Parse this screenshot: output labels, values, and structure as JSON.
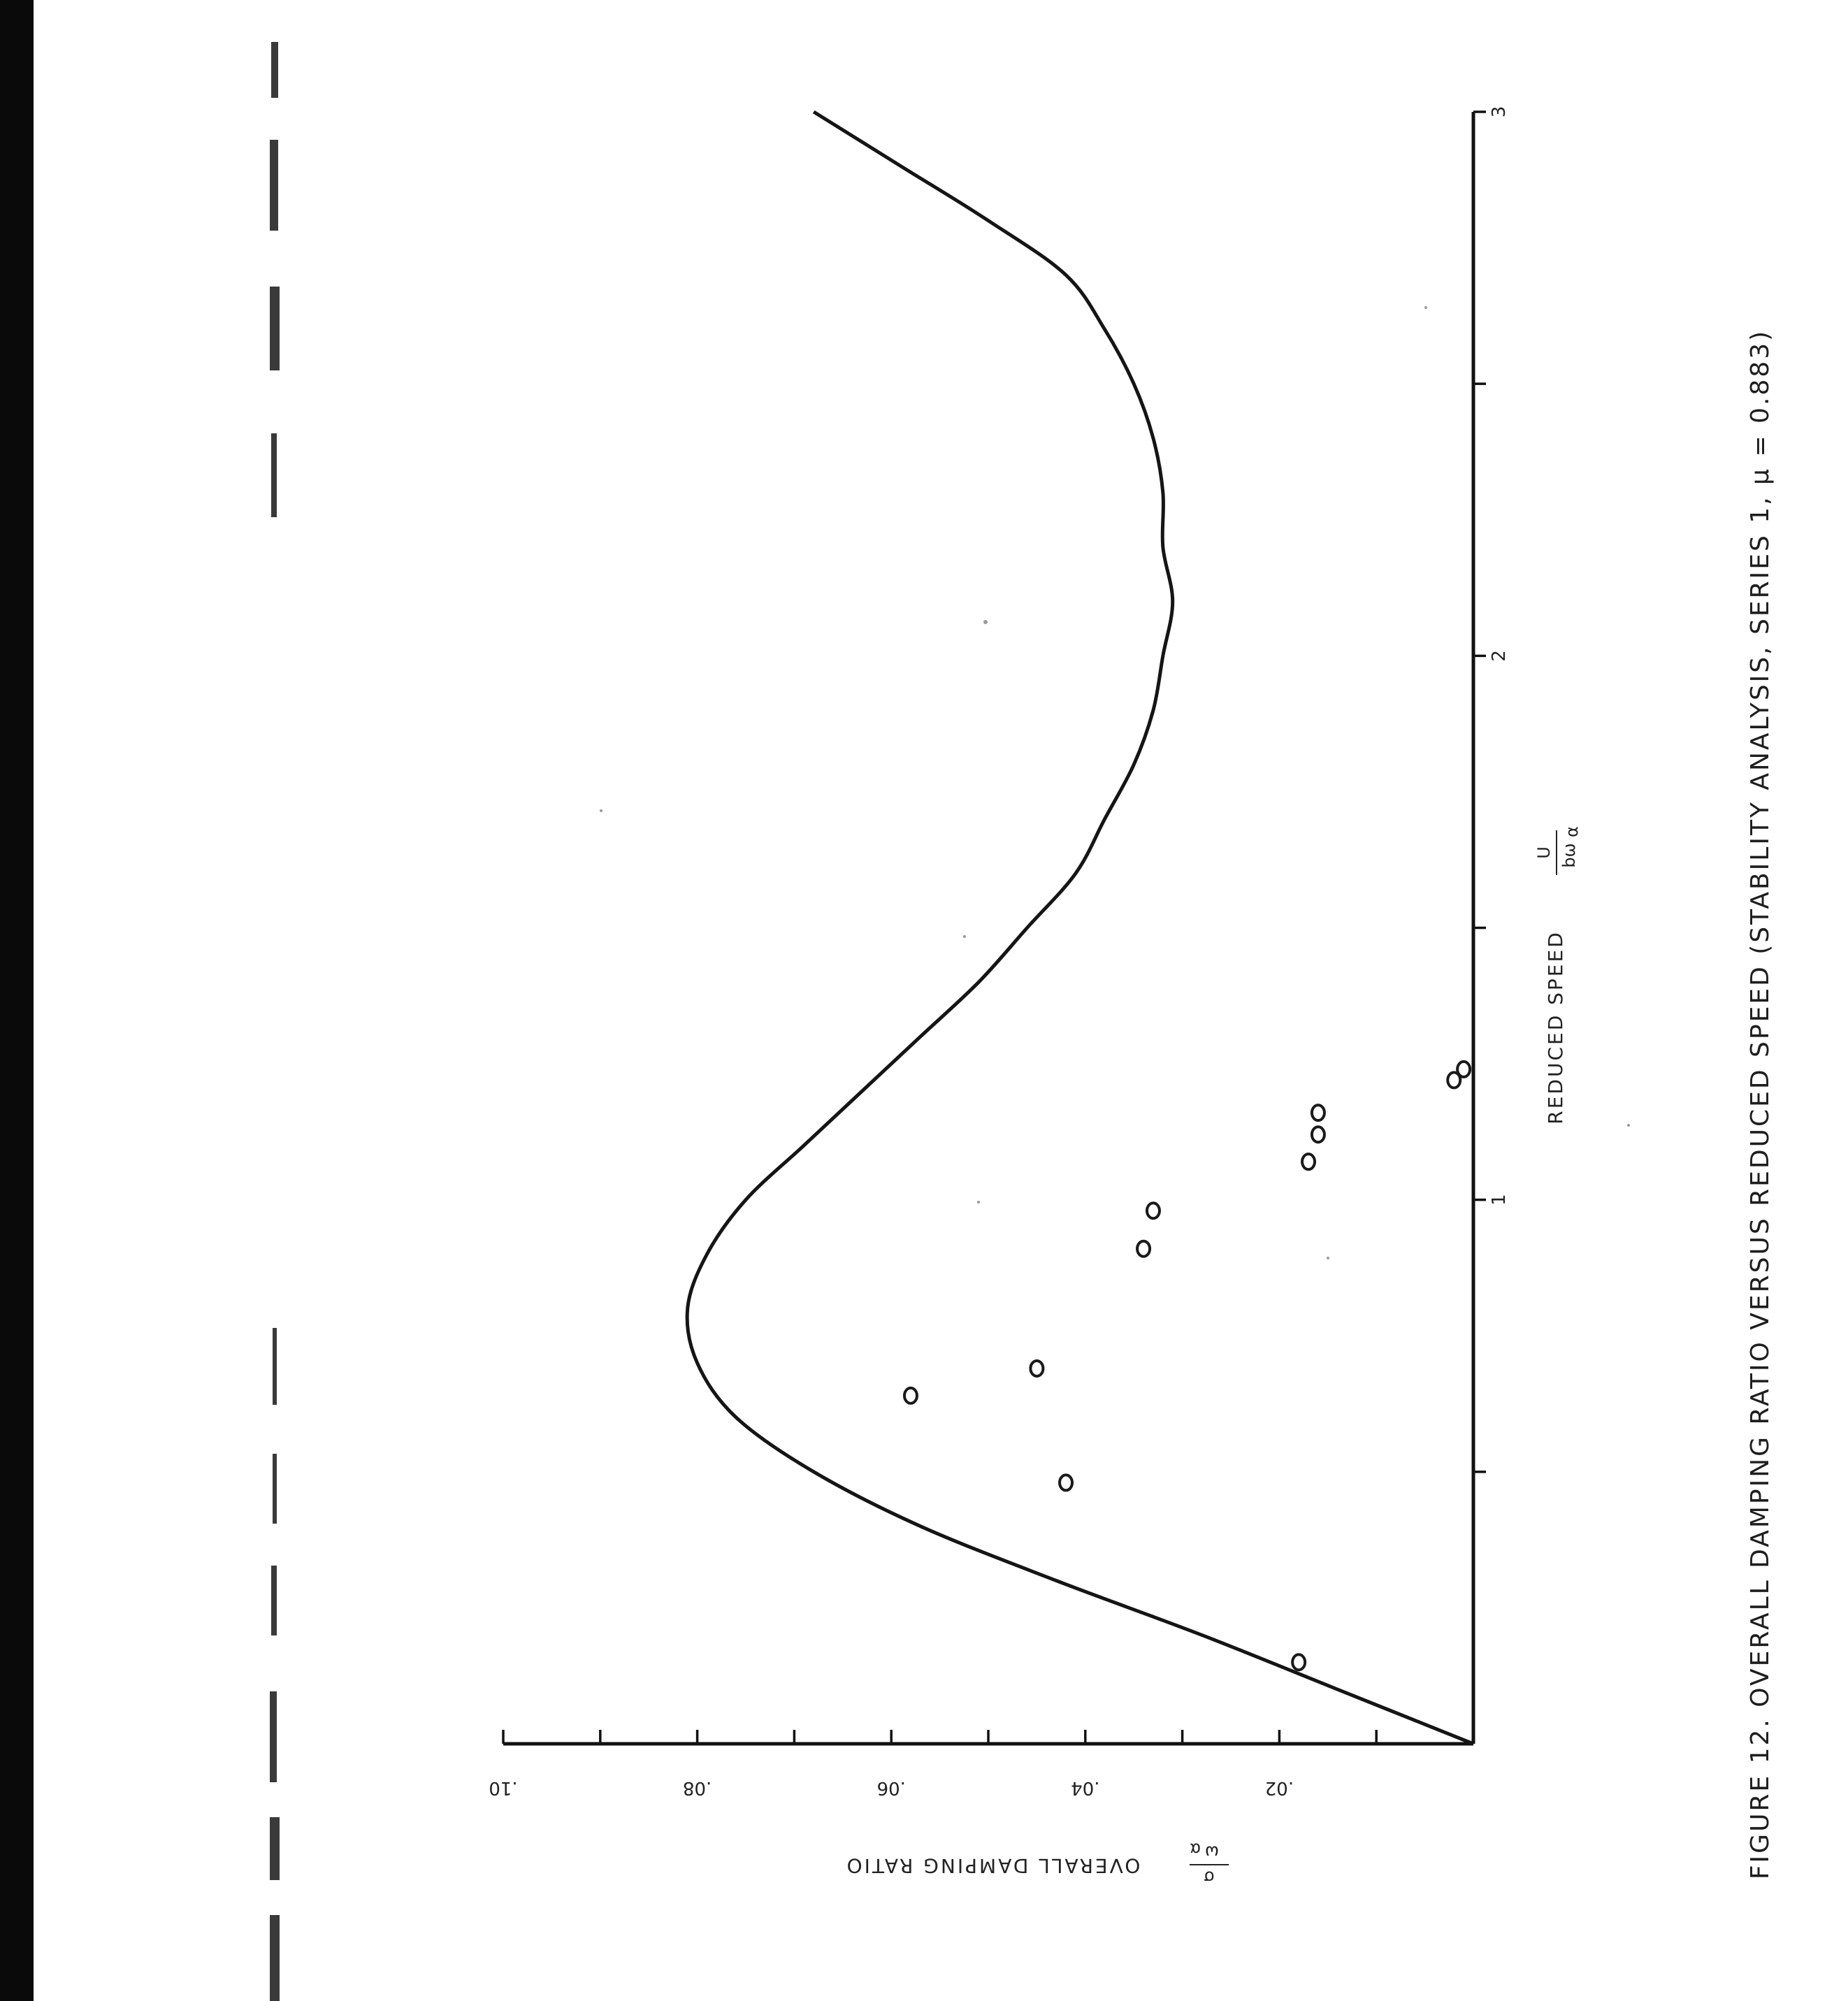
{
  "figure": {
    "caption": "FIGURE 12.  OVERALL DAMPING RATIO VERSUS REDUCED SPEED  (STABILITY ANALYSIS, SERIES 1, μ = 0.883)"
  },
  "chart_data": {
    "type": "line",
    "xlabel": "REDUCED SPEED",
    "xlabel_fraction": {
      "numerator": "U",
      "denominator": "bω",
      "denominator_sub": "α"
    },
    "ylabel": "OVERALL DAMPING RATIO",
    "ylabel_fraction": {
      "numerator": "σ",
      "denominator": "ω",
      "denominator_sub": "α"
    },
    "xlim": [
      0,
      3
    ],
    "ylim": [
      0,
      0.1
    ],
    "x_tick_labels": [
      {
        "value": 1,
        "label": "1"
      },
      {
        "value": 2,
        "label": "2"
      },
      {
        "value": 3,
        "label": "3"
      }
    ],
    "x_minor_ticks": [
      0.5,
      1.5,
      2.5
    ],
    "y_tick_labels": [
      {
        "value": 0.02,
        "label": ".02"
      },
      {
        "value": 0.04,
        "label": ".04"
      },
      {
        "value": 0.06,
        "label": ".06"
      },
      {
        "value": 0.08,
        "label": ".08"
      },
      {
        "value": 0.1,
        "label": ".10"
      }
    ],
    "y_minor_ticks": [
      0.01,
      0.03,
      0.05,
      0.07,
      0.09
    ],
    "grid": false,
    "series": [
      {
        "kind": "curve",
        "x": [
          0,
          0.1,
          0.2,
          0.3,
          0.4,
          0.5,
          0.6,
          0.7,
          0.8,
          0.9,
          1.0,
          1.1,
          1.2,
          1.3,
          1.4,
          1.5,
          1.6,
          1.7,
          1.8,
          1.9,
          2.0,
          2.1,
          2.2,
          2.3,
          2.4,
          2.5,
          2.6,
          2.7,
          2.8,
          2.9,
          3.0
        ],
        "y": [
          0.0,
          0.014,
          0.028,
          0.043,
          0.057,
          0.068,
          0.076,
          0.08,
          0.081,
          0.079,
          0.075,
          0.069,
          0.063,
          0.057,
          0.051,
          0.046,
          0.041,
          0.038,
          0.035,
          0.033,
          0.032,
          0.031,
          0.032,
          0.032,
          0.033,
          0.035,
          0.038,
          0.042,
          0.05,
          0.059,
          0.068
        ]
      },
      {
        "kind": "points",
        "x": [
          0.15,
          0.48,
          0.64,
          0.69,
          0.91,
          0.98,
          1.07,
          1.12,
          1.16,
          1.22,
          1.24
        ],
        "y": [
          0.018,
          0.042,
          0.058,
          0.045,
          0.034,
          0.033,
          0.017,
          0.016,
          0.016,
          0.002,
          0.001
        ]
      }
    ]
  },
  "scan_marks": {
    "margin_specks": 7
  }
}
